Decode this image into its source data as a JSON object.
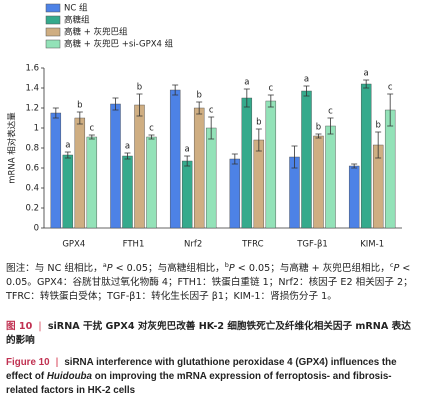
{
  "chart_data": {
    "type": "bar",
    "y_label": "mRNA 相对表达量",
    "categories": [
      "GPX4",
      "FTH1",
      "Nrf2",
      "TFRC",
      "TGF-β1",
      "KIM-1"
    ],
    "series": [
      {
        "name": "NC 组",
        "color": "#4d82e6",
        "values": [
          1.15,
          1.24,
          1.38,
          0.69,
          0.71,
          0.62
        ],
        "errors": [
          0.05,
          0.06,
          0.05,
          0.05,
          0.11,
          0.02
        ]
      },
      {
        "name": "高糖组",
        "color": "#35aa8c",
        "values": [
          0.73,
          0.72,
          0.67,
          1.3,
          1.37,
          1.44
        ],
        "errors": [
          0.03,
          0.03,
          0.05,
          0.09,
          0.05,
          0.04
        ],
        "labels": [
          "a",
          "a",
          "a",
          "a",
          "a",
          "a"
        ]
      },
      {
        "name": "高糖 + 灰兜巴组",
        "color": "#cfae82",
        "values": [
          1.1,
          1.23,
          1.2,
          0.88,
          0.92,
          0.83
        ],
        "errors": [
          0.06,
          0.11,
          0.06,
          0.11,
          0.02,
          0.13
        ],
        "labels": [
          "b",
          "b",
          "b",
          "b",
          "b",
          "b"
        ]
      },
      {
        "name": "高糖 + 灰兜巴 +si-GPX4 组",
        "color": "#93e2b8",
        "values": [
          0.91,
          0.91,
          1.0,
          1.27,
          1.02,
          1.18
        ],
        "errors": [
          0.02,
          0.02,
          0.11,
          0.06,
          0.08,
          0.16
        ],
        "labels": [
          "c",
          "c",
          "c",
          "c",
          "c",
          "c"
        ]
      }
    ],
    "ylim": [
      0,
      1.6
    ],
    "yticks": [
      0,
      0.2,
      0.4,
      0.6,
      0.8,
      1.0,
      1.2,
      1.4,
      1.6
    ],
    "grid": false
  },
  "notes": [
    "图注：与 NC 组相比，",
    "a",
    "P",
    " < 0.05；与高糖组相比，",
    "b",
    "P",
    " < 0.05；与高糖 + 灰兜巴组相比，",
    "c",
    "P",
    " < 0.05。GPX4：谷胱甘肽过氧化物酶 4；FTH1：铁蛋白重链 1；Nrf2：核因子 E2 相关因子 2；TFRC：转铁蛋白受体；TGF-β1：转化生长因子 β1；KIM-1：肾损伤分子 1。"
  ],
  "caption_cn": {
    "label": "图 10",
    "text": "siRNA 干扰 GPX4 对灰兜巴改善 HK-2 细胞铁死亡及纤维化相关因子 mRNA 表达的影响"
  },
  "caption_en": {
    "label": "Figure 10",
    "parts": [
      "siRNA interference with glutathione peroxidase 4 (GPX4) influences the effect of ",
      "Huidouba",
      " on improving the mRNA expression of ferroptosis- and fibrosis-related factors in HK-2 cells"
    ]
  }
}
